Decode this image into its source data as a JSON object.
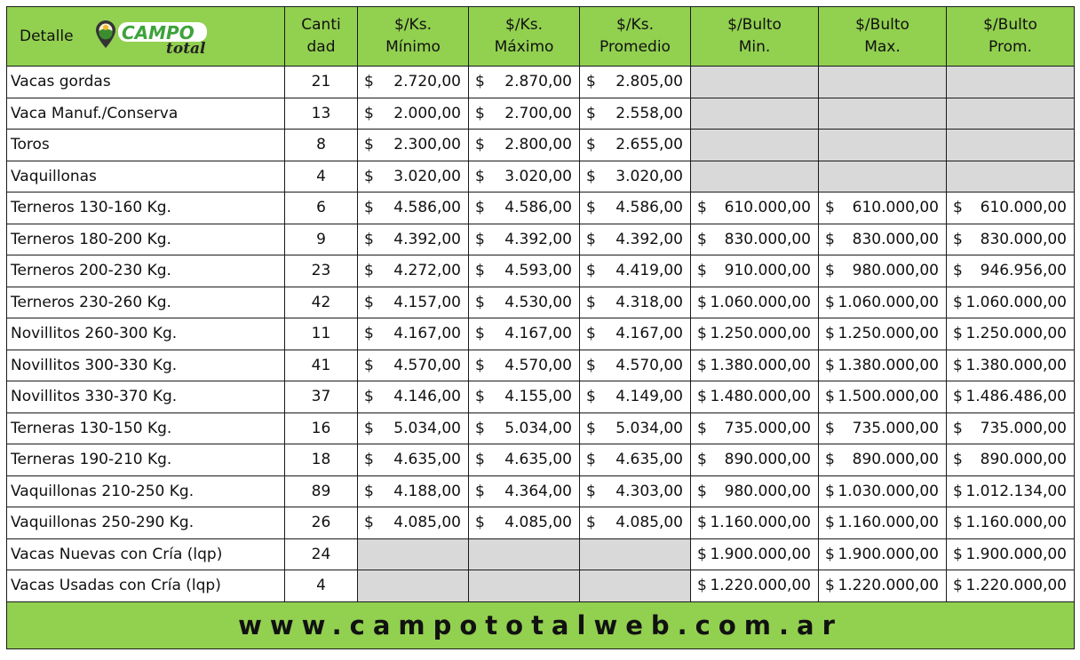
{
  "header": {
    "detalle": "Detalle",
    "logo_text": "CAMPO total",
    "columns": [
      [
        "Canti",
        "dad"
      ],
      [
        "$/Ks.",
        "Mínimo"
      ],
      [
        "$/Ks.",
        "Máximo"
      ],
      [
        "$/Ks.",
        "Promedio"
      ],
      [
        "$/Bulto",
        "Min."
      ],
      [
        "$/Bulto",
        "Max."
      ],
      [
        "$/Bulto",
        "Prom."
      ]
    ]
  },
  "currency_symbol": "$",
  "colors": {
    "header_green": "#92d050",
    "empty_cell": "#d9d9d9"
  },
  "rows": [
    {
      "detalle": "Vacas gordas",
      "cantidad": "21",
      "ks_min": "2.720,00",
      "ks_max": "2.870,00",
      "ks_prom": "2.805,00",
      "bulto_min": null,
      "bulto_max": null,
      "bulto_prom": null
    },
    {
      "detalle": "Vaca Manuf./Conserva",
      "cantidad": "13",
      "ks_min": "2.000,00",
      "ks_max": "2.700,00",
      "ks_prom": "2.558,00",
      "bulto_min": null,
      "bulto_max": null,
      "bulto_prom": null
    },
    {
      "detalle": "Toros",
      "cantidad": "8",
      "ks_min": "2.300,00",
      "ks_max": "2.800,00",
      "ks_prom": "2.655,00",
      "bulto_min": null,
      "bulto_max": null,
      "bulto_prom": null
    },
    {
      "detalle": "Vaquillonas",
      "cantidad": "4",
      "ks_min": "3.020,00",
      "ks_max": "3.020,00",
      "ks_prom": "3.020,00",
      "bulto_min": null,
      "bulto_max": null,
      "bulto_prom": null
    },
    {
      "detalle": "Terneros 130-160 Kg.",
      "cantidad": "6",
      "ks_min": "4.586,00",
      "ks_max": "4.586,00",
      "ks_prom": "4.586,00",
      "bulto_min": "610.000,00",
      "bulto_max": "610.000,00",
      "bulto_prom": "610.000,00"
    },
    {
      "detalle": "Terneros 180-200 Kg.",
      "cantidad": "9",
      "ks_min": "4.392,00",
      "ks_max": "4.392,00",
      "ks_prom": "4.392,00",
      "bulto_min": "830.000,00",
      "bulto_max": "830.000,00",
      "bulto_prom": "830.000,00"
    },
    {
      "detalle": "Terneros 200-230 Kg.",
      "cantidad": "23",
      "ks_min": "4.272,00",
      "ks_max": "4.593,00",
      "ks_prom": "4.419,00",
      "bulto_min": "910.000,00",
      "bulto_max": "980.000,00",
      "bulto_prom": "946.956,00"
    },
    {
      "detalle": "Terneros 230-260 Kg.",
      "cantidad": "42",
      "ks_min": "4.157,00",
      "ks_max": "4.530,00",
      "ks_prom": "4.318,00",
      "bulto_min": "1.060.000,00",
      "bulto_max": "1.060.000,00",
      "bulto_prom": "1.060.000,00"
    },
    {
      "detalle": "Novillitos 260-300 Kg.",
      "cantidad": "11",
      "ks_min": "4.167,00",
      "ks_max": "4.167,00",
      "ks_prom": "4.167,00",
      "bulto_min": "1.250.000,00",
      "bulto_max": "1.250.000,00",
      "bulto_prom": "1.250.000,00"
    },
    {
      "detalle": "Novillitos 300-330 Kg.",
      "cantidad": "41",
      "ks_min": "4.570,00",
      "ks_max": "4.570,00",
      "ks_prom": "4.570,00",
      "bulto_min": "1.380.000,00",
      "bulto_max": "1.380.000,00",
      "bulto_prom": "1.380.000,00"
    },
    {
      "detalle": "Novillitos 330-370 Kg.",
      "cantidad": "37",
      "ks_min": "4.146,00",
      "ks_max": "4.155,00",
      "ks_prom": "4.149,00",
      "bulto_min": "1.480.000,00",
      "bulto_max": "1.500.000,00",
      "bulto_prom": "1.486.486,00"
    },
    {
      "detalle": "Terneras 130-150 Kg.",
      "cantidad": "16",
      "ks_min": "5.034,00",
      "ks_max": "5.034,00",
      "ks_prom": "5.034,00",
      "bulto_min": "735.000,00",
      "bulto_max": "735.000,00",
      "bulto_prom": "735.000,00"
    },
    {
      "detalle": "Terneras 190-210 Kg.",
      "cantidad": "18",
      "ks_min": "4.635,00",
      "ks_max": "4.635,00",
      "ks_prom": "4.635,00",
      "bulto_min": "890.000,00",
      "bulto_max": "890.000,00",
      "bulto_prom": "890.000,00"
    },
    {
      "detalle": "Vaquillonas 210-250 Kg.",
      "cantidad": "89",
      "ks_min": "4.188,00",
      "ks_max": "4.364,00",
      "ks_prom": "4.303,00",
      "bulto_min": "980.000,00",
      "bulto_max": "1.030.000,00",
      "bulto_prom": "1.012.134,00"
    },
    {
      "detalle": "Vaquillonas 250-290 Kg.",
      "cantidad": "26",
      "ks_min": "4.085,00",
      "ks_max": "4.085,00",
      "ks_prom": "4.085,00",
      "bulto_min": "1.160.000,00",
      "bulto_max": "1.160.000,00",
      "bulto_prom": "1.160.000,00"
    },
    {
      "detalle": "Vacas Nuevas con Cría (lqp)",
      "cantidad": "24",
      "ks_min": null,
      "ks_max": null,
      "ks_prom": null,
      "bulto_min": "1.900.000,00",
      "bulto_max": "1.900.000,00",
      "bulto_prom": "1.900.000,00"
    },
    {
      "detalle": "Vacas Usadas con Cría (lqp)",
      "cantidad": "4",
      "ks_min": null,
      "ks_max": null,
      "ks_prom": null,
      "bulto_min": "1.220.000,00",
      "bulto_max": "1.220.000,00",
      "bulto_prom": "1.220.000,00"
    }
  ],
  "footer": {
    "website": "www.campototalweb.com.ar"
  }
}
